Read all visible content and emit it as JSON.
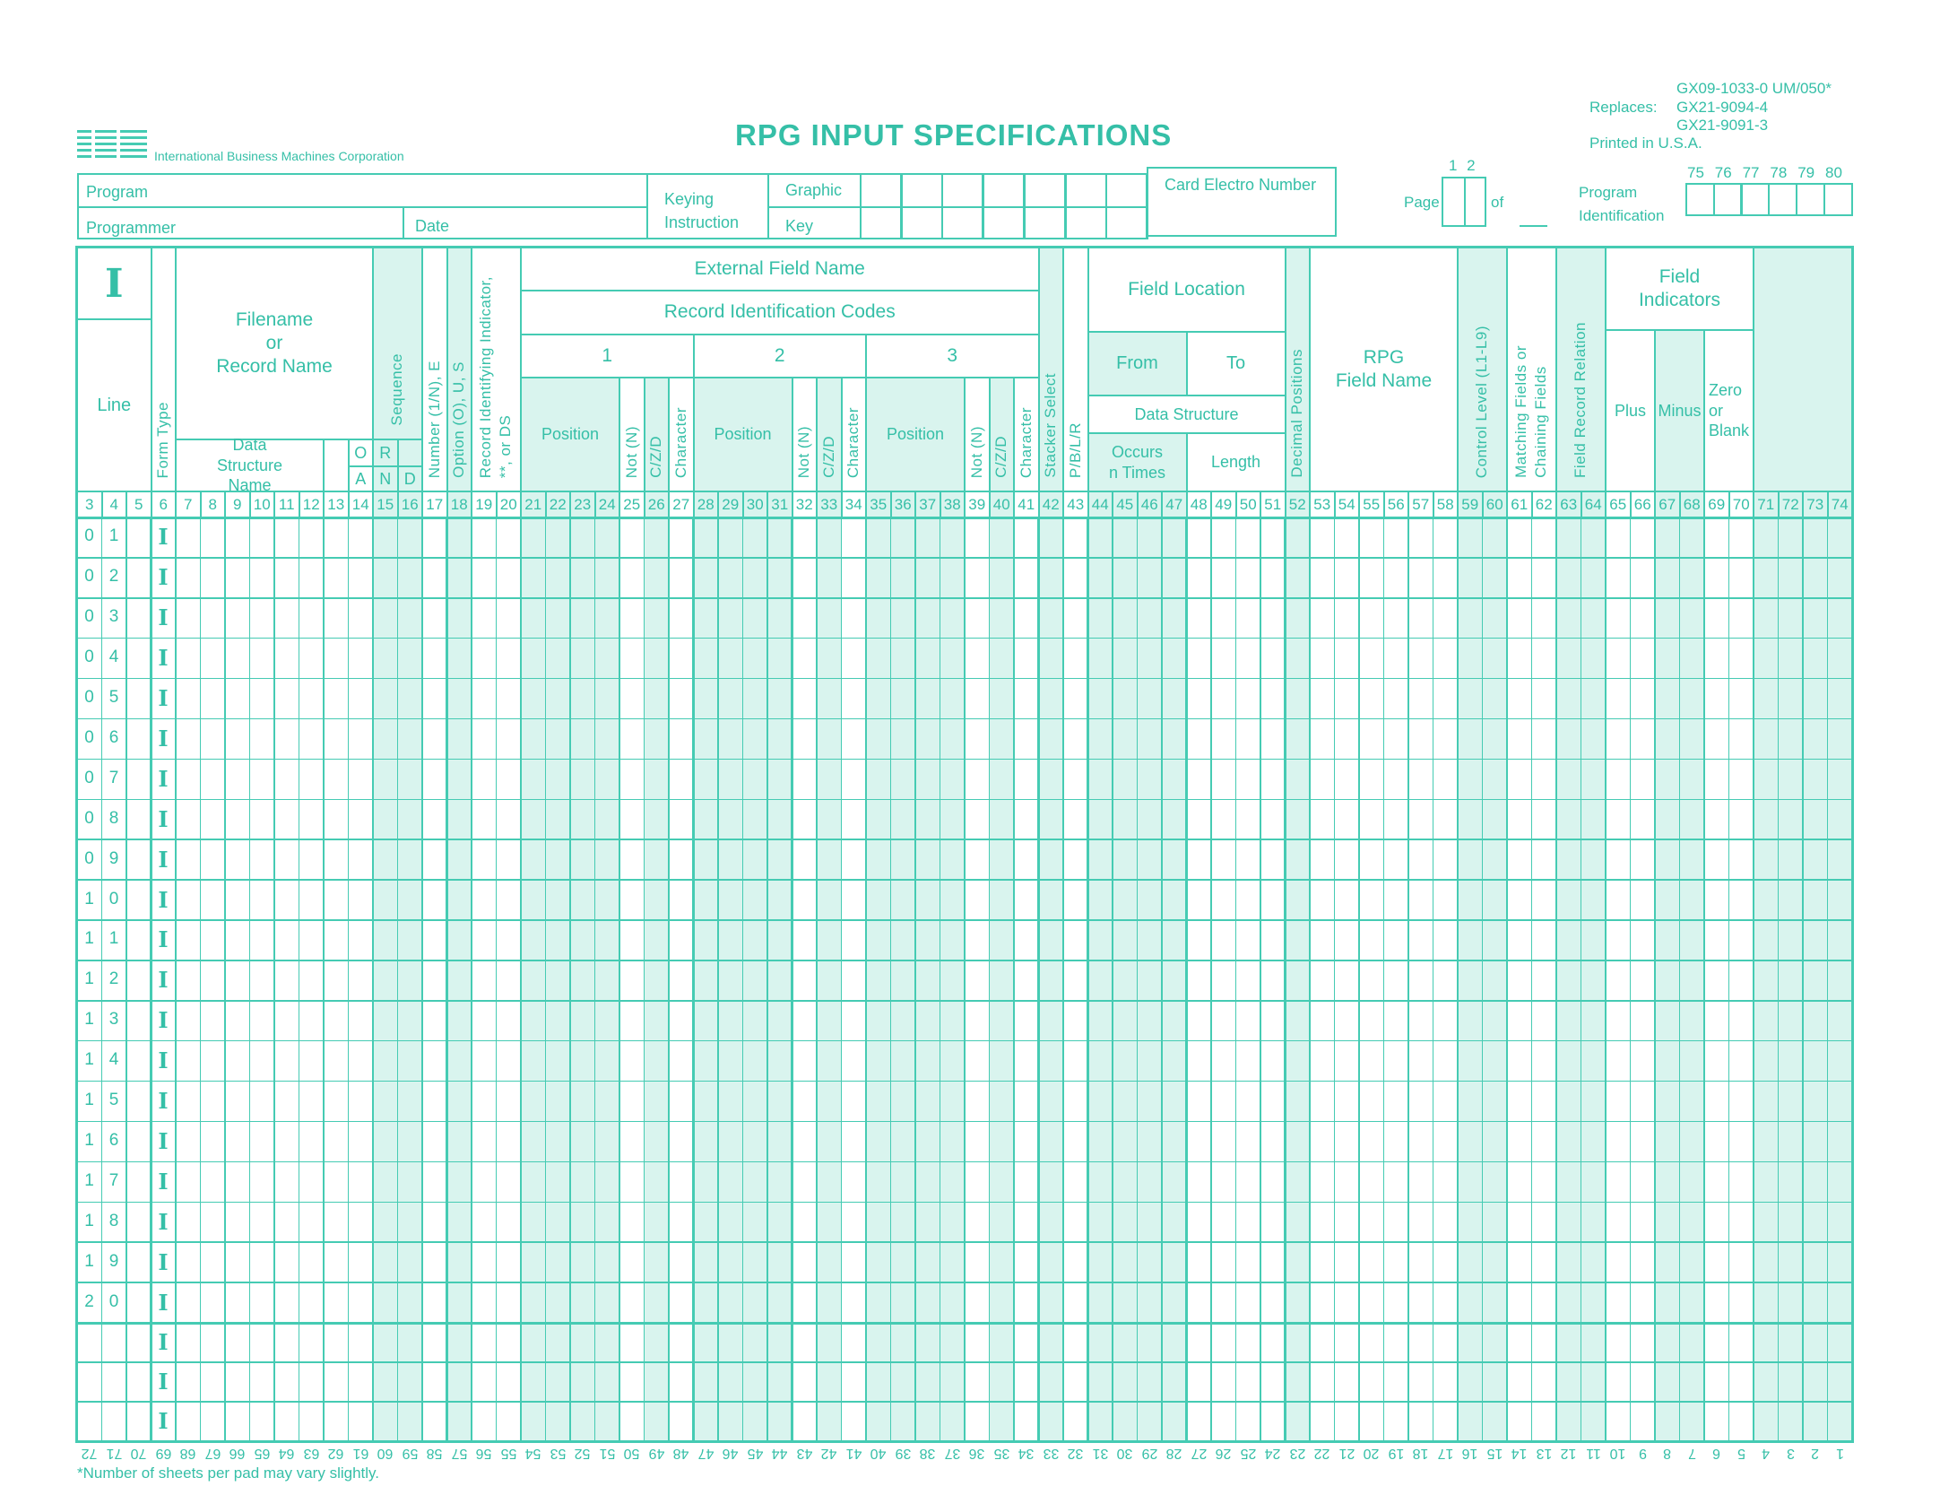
{
  "header": {
    "logo_text": "IBM",
    "corporation": "International Business Machines Corporation",
    "title": "RPG INPUT SPECIFICATIONS",
    "form_number": "GX09-1033-0 UM/050*",
    "replaces_label": "Replaces:",
    "replaces": [
      "GX21-9094-4",
      "GX21-9091-3"
    ],
    "printed": "Printed in U.S.A."
  },
  "top_fields": {
    "program": "Program",
    "programmer": "Programmer",
    "date": "Date",
    "keying_instruction": "Keying\nInstruction",
    "graphic": "Graphic",
    "key": "Key",
    "card_electro_number": "Card Electro Number",
    "page_label": "Page",
    "page_cols": "1 2",
    "of_label": "of",
    "program_identification": "Program\nIdentification",
    "program_id_cols": [
      "75",
      "76",
      "77",
      "78",
      "79",
      "80"
    ]
  },
  "column_headers": {
    "form_letter": "I",
    "line": "Line",
    "form_type": "Form Type",
    "filename": "Filename\nor\nRecord Name",
    "data_structure_name": "Data\nStructure\nName",
    "or_o": "O",
    "or_r": "R",
    "and_a": "A",
    "and_n": "N",
    "and_d": "D",
    "sequence": "Sequence",
    "number": "Number (1/N), E",
    "option": "Option (O), U, S",
    "record_identifying_indicator": "Record Identifying Indicator,\n**, or DS",
    "external_field_name": "External Field Name",
    "record_identification_codes": "Record Identification Codes",
    "code_1": "1",
    "code_2": "2",
    "code_3": "3",
    "position": "Position",
    "not": "Not (N)",
    "czd": "C/Z/D",
    "character": "Character",
    "stacker_select": "Stacker Select",
    "pblr": "P/B/L/R",
    "field_location": "Field Location",
    "from": "From",
    "to": "To",
    "data_structure": "Data Structure",
    "occurs": "Occurs\nn Times",
    "length": "Length",
    "decimal_positions": "Decimal Positions",
    "rpg_field_name": "RPG\nField Name",
    "control_level": "Control Level (L1-L9)",
    "matching_fields": "Matching Fields or\nChaining Fields",
    "field_record_relation": "Field Record Relation",
    "field_indicators": "Field\nIndicators",
    "plus": "Plus",
    "minus": "Minus",
    "zero_or_blank": "Zero\nor\nBlank"
  },
  "column_numbers": [
    "3",
    "4",
    "5",
    "6",
    "7",
    "8",
    "9",
    "10",
    "11",
    "12",
    "13",
    "14",
    "15",
    "16",
    "17",
    "18",
    "19",
    "20",
    "21",
    "22",
    "23",
    "24",
    "25",
    "26",
    "27",
    "28",
    "29",
    "30",
    "31",
    "32",
    "33",
    "34",
    "35",
    "36",
    "37",
    "38",
    "39",
    "40",
    "41",
    "42",
    "43",
    "44",
    "45",
    "46",
    "47",
    "48",
    "49",
    "50",
    "51",
    "52",
    "53",
    "54",
    "55",
    "56",
    "57",
    "58",
    "59",
    "60",
    "61",
    "62",
    "63",
    "64",
    "65",
    "66",
    "67",
    "68",
    "69",
    "70",
    "71",
    "72",
    "73",
    "74"
  ],
  "line_numbers": [
    "01",
    "02",
    "03",
    "04",
    "05",
    "06",
    "07",
    "08",
    "09",
    "10",
    "11",
    "12",
    "13",
    "14",
    "15",
    "16",
    "17",
    "18",
    "19",
    "20"
  ],
  "form_type_value": "I",
  "blank_rows": 3,
  "reverse_numbers": [
    "72",
    "71",
    "70",
    "69",
    "68",
    "67",
    "66",
    "65",
    "64",
    "63",
    "62",
    "61",
    "60",
    "59",
    "58",
    "57",
    "56",
    "55",
    "54",
    "53",
    "52",
    "51",
    "50",
    "49",
    "48",
    "47",
    "46",
    "45",
    "44",
    "43",
    "42",
    "41",
    "40",
    "39",
    "38",
    "37",
    "36",
    "35",
    "34",
    "33",
    "32",
    "31",
    "30",
    "29",
    "28",
    "27",
    "26",
    "25",
    "24",
    "23",
    "22",
    "21",
    "20",
    "19",
    "18",
    "17",
    "16",
    "15",
    "14",
    "13",
    "12",
    "11",
    "10",
    "9",
    "8",
    "7",
    "6",
    "5",
    "4",
    "3",
    "2",
    "1"
  ],
  "footnote": "*Number of sheets per pad may vary slightly.",
  "colors": {
    "ink": "#35bfa7",
    "line": "#45cbb3",
    "shade": "#d9f4ee"
  }
}
